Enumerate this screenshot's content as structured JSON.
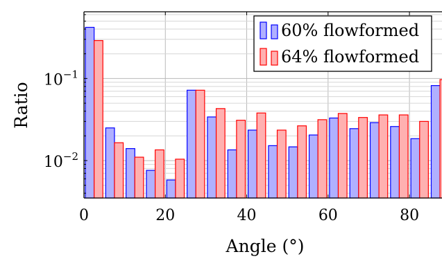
{
  "chart_data": {
    "type": "bar",
    "xlabel": "Angle (°)",
    "ylabel": "Ratio",
    "x_ticks": [
      "0",
      "20",
      "40",
      "60",
      "80"
    ],
    "x_tick_values": [
      0,
      20,
      40,
      60,
      80
    ],
    "y_ticks": [
      {
        "base": "10",
        "exp": "−2",
        "value": 0.01
      },
      {
        "base": "10",
        "exp": "−1",
        "value": 0.1
      }
    ],
    "xlim": [
      0,
      88
    ],
    "ylim": [
      0.0035,
      0.65
    ],
    "y_scale": "log",
    "grid": true,
    "legend_position": "top-right",
    "x": [
      2.5,
      7.5,
      12.5,
      17.5,
      22.5,
      27.5,
      32.5,
      37.5,
      42.5,
      47.5,
      52.5,
      57.5,
      62.5,
      67.5,
      72.5,
      77.5,
      82.5,
      87.5
    ],
    "series": [
      {
        "name": "60% flowformed",
        "color": "#0000ff",
        "fill": "#b0b0ff",
        "values": [
          0.42,
          0.025,
          0.014,
          0.0076,
          0.0058,
          0.072,
          0.034,
          0.0135,
          0.0235,
          0.0152,
          0.0147,
          0.0205,
          0.033,
          0.0245,
          0.029,
          0.026,
          0.0185,
          0.082
        ]
      },
      {
        "name": "64% flowformed",
        "color": "#ff0000",
        "fill": "#ffb0b0",
        "values": [
          0.29,
          0.0165,
          0.011,
          0.0135,
          0.0104,
          0.072,
          0.043,
          0.031,
          0.038,
          0.0235,
          0.0265,
          0.0315,
          0.0375,
          0.0335,
          0.036,
          0.036,
          0.03,
          0.097
        ]
      }
    ]
  }
}
